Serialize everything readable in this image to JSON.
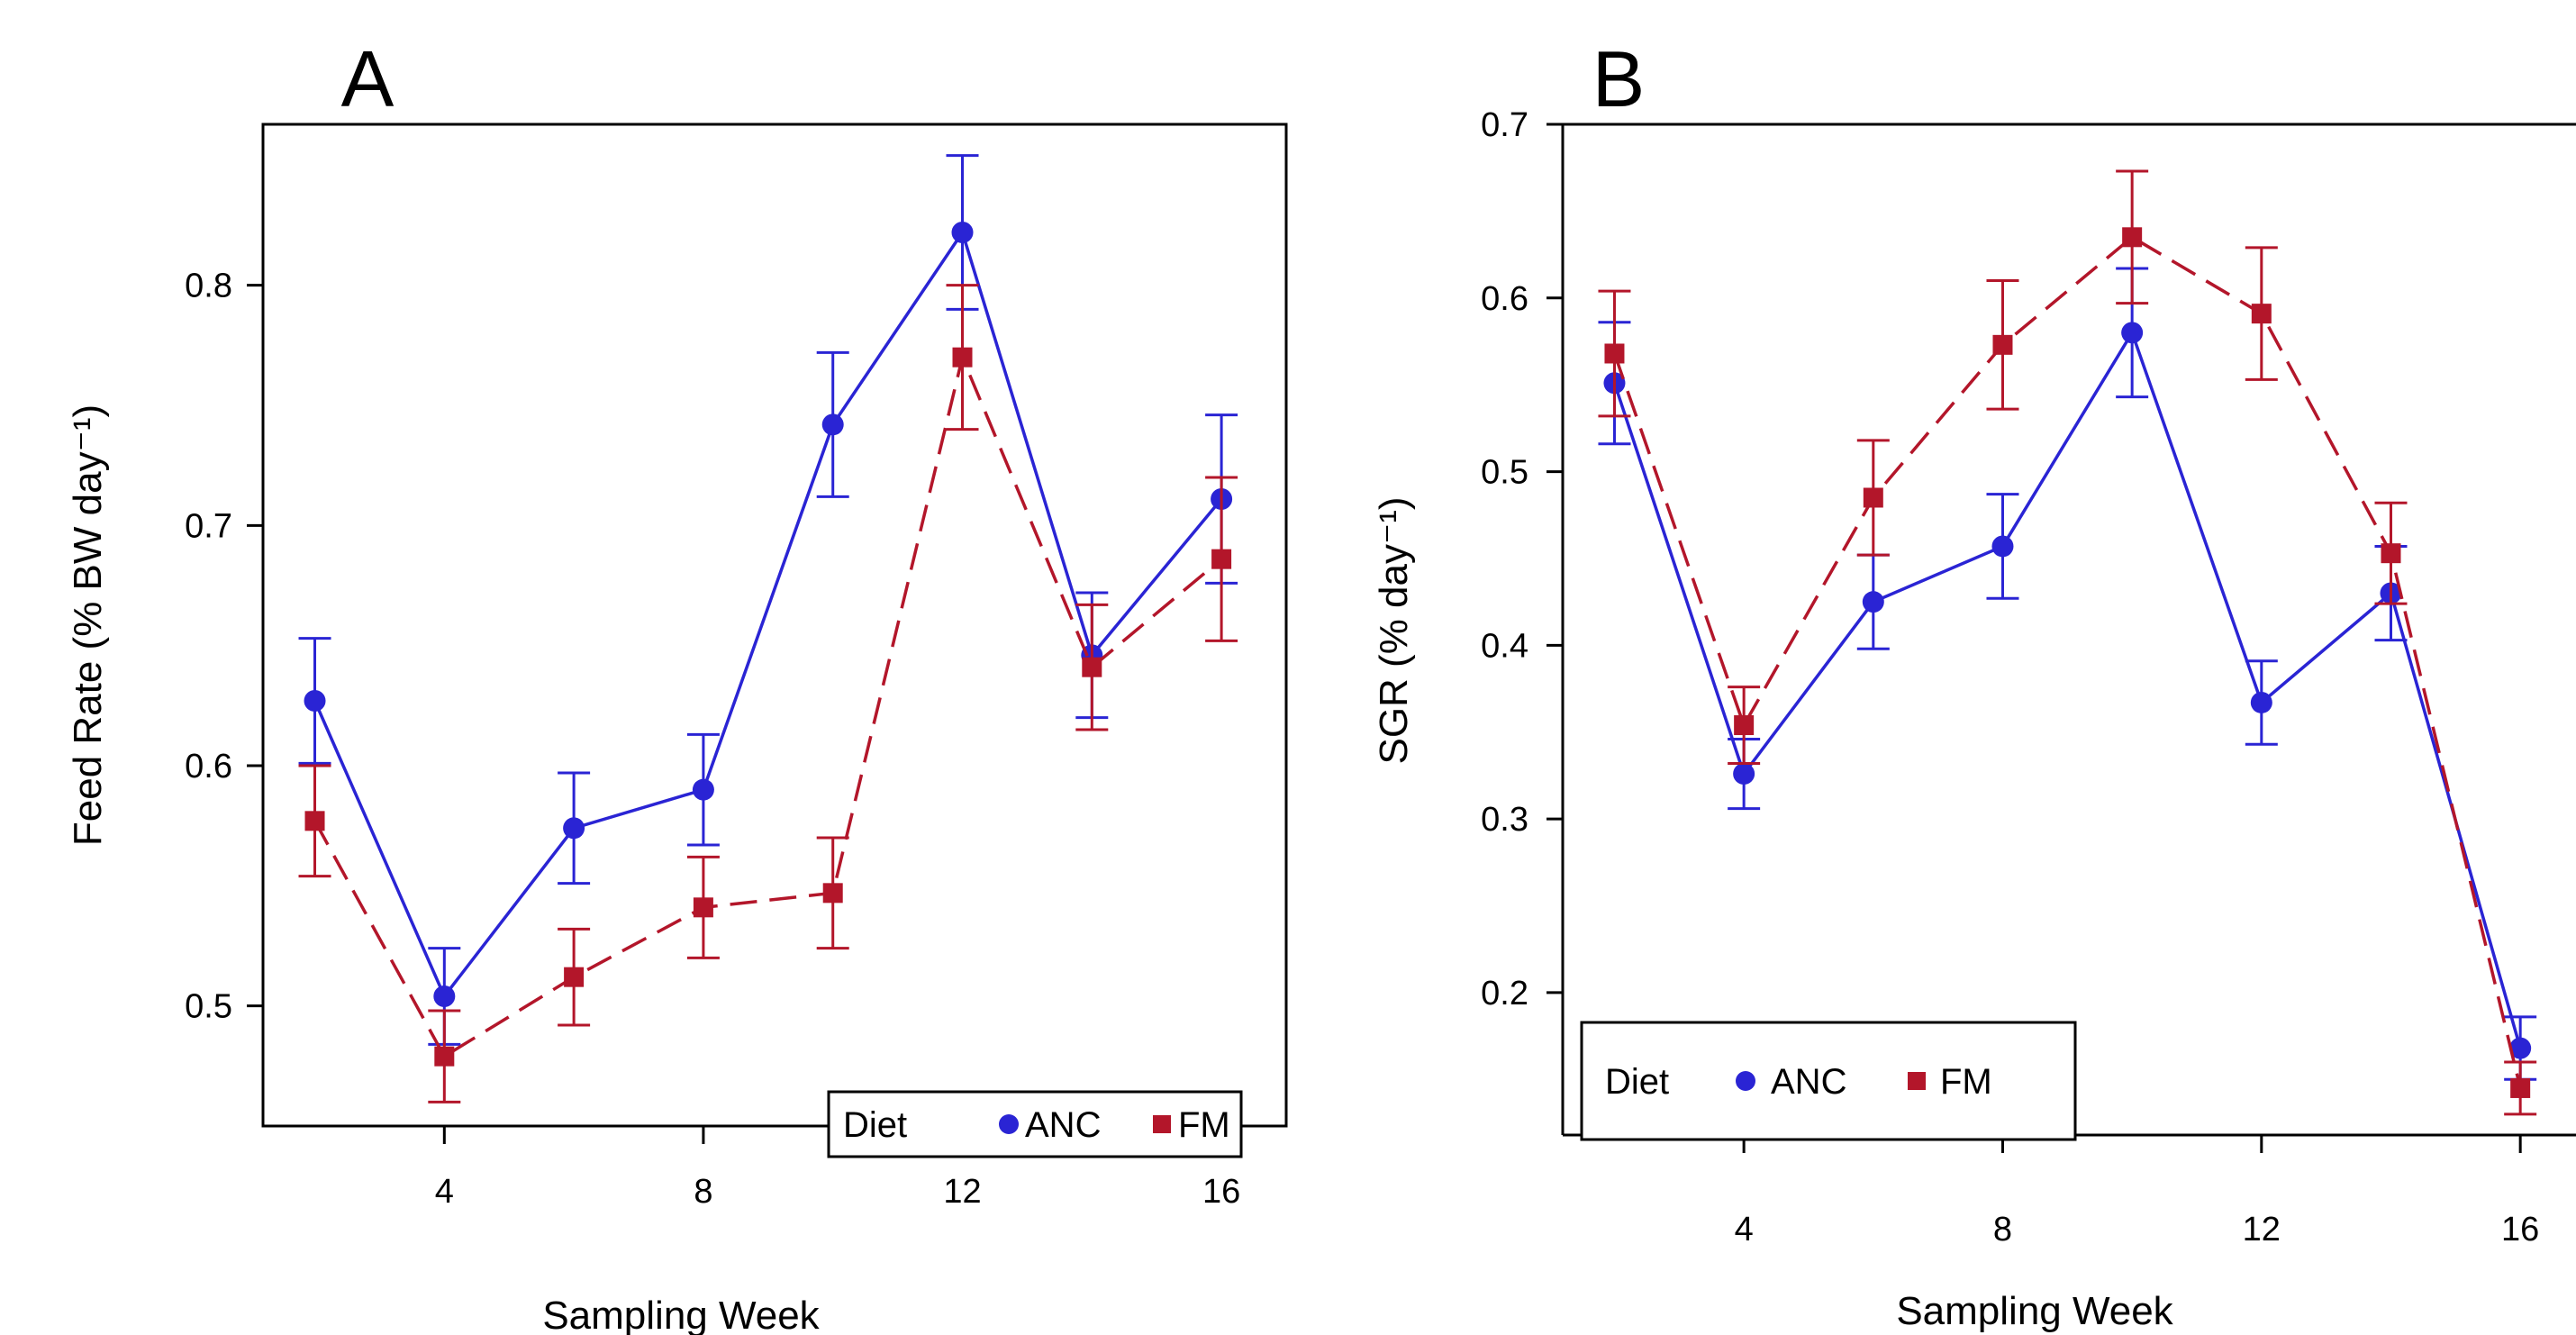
{
  "colors": {
    "ANC": "#2a24d4",
    "FM": "#b3162a",
    "axis": "#000000"
  },
  "chart_data": [
    {
      "type": "line",
      "panel_label": "A",
      "xlabel": "Sampling Week",
      "ylabel": "Feed Rate (% BW day⁻¹)",
      "xlim": [
        1.2,
        17.0
      ],
      "ylim": [
        0.45,
        0.867
      ],
      "x_ticks": [
        4,
        8,
        12,
        16
      ],
      "x_tick_labels": [
        "4",
        "8",
        "12",
        "16"
      ],
      "y_ticks": [
        0.5,
        0.6,
        0.7,
        0.8
      ],
      "y_tick_labels": [
        "0.5",
        "0.6",
        "0.7",
        "0.8"
      ],
      "grid": false,
      "legend": {
        "title": "Diet",
        "placement": "bottom-right",
        "entries": [
          "ANC",
          "FM"
        ]
      },
      "series": [
        {
          "name": "ANC",
          "marker": "circle",
          "line": "solid",
          "x": [
            2,
            4,
            6,
            8,
            10,
            12,
            14,
            16
          ],
          "y": [
            0.627,
            0.504,
            0.574,
            0.59,
            0.742,
            0.822,
            0.646,
            0.711
          ],
          "err": [
            0.026,
            0.02,
            0.023,
            0.023,
            0.03,
            0.032,
            0.026,
            0.035
          ]
        },
        {
          "name": "FM",
          "marker": "square",
          "line": "dashed",
          "x": [
            2,
            4,
            6,
            8,
            10,
            12,
            14,
            16
          ],
          "y": [
            0.577,
            0.479,
            0.512,
            0.541,
            0.547,
            0.77,
            0.641,
            0.686
          ],
          "err": [
            0.023,
            0.019,
            0.02,
            0.021,
            0.023,
            0.03,
            0.026,
            0.034
          ]
        }
      ]
    },
    {
      "type": "line",
      "panel_label": "B",
      "xlabel": "Sampling Week",
      "ylabel": "SGR (% day⁻¹)",
      "xlim": [
        1.2,
        17.0
      ],
      "ylim": [
        0.118,
        0.7
      ],
      "x_ticks": [
        4,
        8,
        12,
        16
      ],
      "x_tick_labels": [
        "4",
        "8",
        "12",
        "16"
      ],
      "y_ticks": [
        0.2,
        0.3,
        0.4,
        0.5,
        0.6,
        0.7
      ],
      "y_tick_labels": [
        "0.2",
        "0.3",
        "0.4",
        "0.5",
        "0.6",
        "0.7"
      ],
      "grid": false,
      "legend": {
        "title": "Diet",
        "placement": "bottom-left",
        "entries": [
          "ANC",
          "FM"
        ]
      },
      "series": [
        {
          "name": "ANC",
          "marker": "circle",
          "line": "solid",
          "x": [
            2,
            4,
            6,
            8,
            10,
            12,
            14,
            16
          ],
          "y": [
            0.551,
            0.326,
            0.425,
            0.457,
            0.58,
            0.367,
            0.43,
            0.168
          ],
          "err": [
            0.035,
            0.02,
            0.027,
            0.03,
            0.037,
            0.024,
            0.027,
            0.018
          ]
        },
        {
          "name": "FM",
          "marker": "square",
          "line": "dashed",
          "x": [
            2,
            4,
            6,
            8,
            10,
            12,
            14,
            16
          ],
          "y": [
            0.568,
            0.354,
            0.485,
            0.573,
            0.635,
            0.591,
            0.453,
            0.145
          ],
          "err": [
            0.036,
            0.022,
            0.033,
            0.037,
            0.038,
            0.038,
            0.029,
            0.015
          ]
        }
      ]
    }
  ]
}
